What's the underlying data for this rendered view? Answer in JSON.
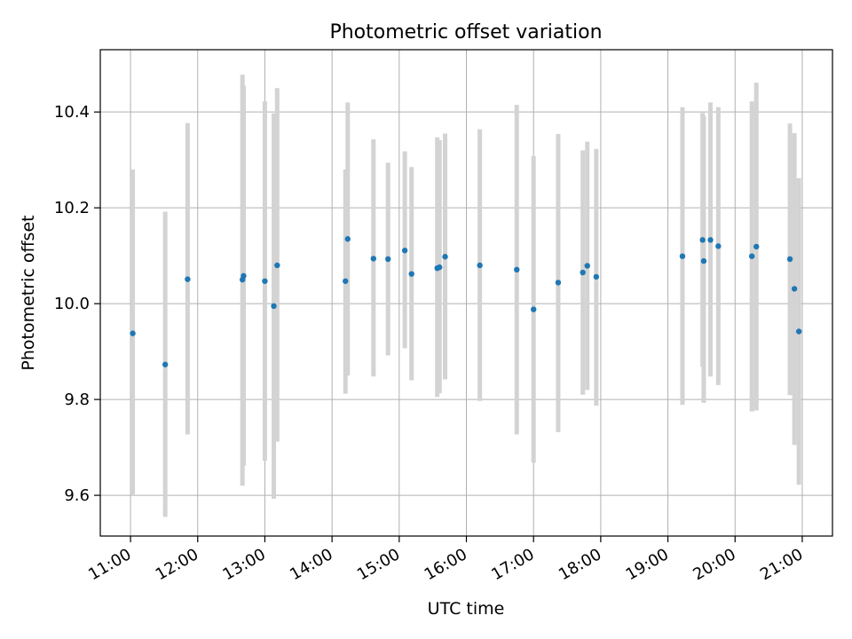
{
  "colors": {
    "point": "#1f77b4",
    "errorbar": "#d3d3d3",
    "grid": "#b0b0b0",
    "axis": "#000000"
  },
  "chart_data": {
    "type": "scatter",
    "title": "Photometric offset variation",
    "xlabel": "UTC time",
    "ylabel": "Photometric offset",
    "grid": true,
    "xlim": [
      "10:33",
      "21:27"
    ],
    "ylim": [
      9.515,
      10.53
    ],
    "x_ticks": [
      "11:00",
      "12:00",
      "13:00",
      "14:00",
      "15:00",
      "16:00",
      "17:00",
      "18:00",
      "19:00",
      "20:00",
      "21:00"
    ],
    "y_ticks": [
      "9.6",
      "9.8",
      "10.0",
      "10.2",
      "10.4"
    ],
    "points": [
      {
        "x": "11:02",
        "y": 9.938,
        "ylo": 9.6,
        "yhi": 10.28
      },
      {
        "x": "11:31",
        "y": 9.873,
        "ylo": 9.555,
        "yhi": 10.192
      },
      {
        "x": "11:51",
        "y": 10.051,
        "ylo": 9.727,
        "yhi": 10.377
      },
      {
        "x": "12:40",
        "y": 10.05,
        "ylo": 9.62,
        "yhi": 10.478
      },
      {
        "x": "12:41",
        "y": 10.058,
        "ylo": 9.662,
        "yhi": 10.455
      },
      {
        "x": "13:00",
        "y": 10.047,
        "ylo": 9.672,
        "yhi": 10.422
      },
      {
        "x": "13:08",
        "y": 9.995,
        "ylo": 9.593,
        "yhi": 10.397
      },
      {
        "x": "13:11",
        "y": 10.08,
        "ylo": 9.712,
        "yhi": 10.45
      },
      {
        "x": "14:12",
        "y": 10.047,
        "ylo": 9.812,
        "yhi": 10.28
      },
      {
        "x": "14:14",
        "y": 10.135,
        "ylo": 9.85,
        "yhi": 10.42
      },
      {
        "x": "14:37",
        "y": 10.094,
        "ylo": 9.848,
        "yhi": 10.343
      },
      {
        "x": "14:50",
        "y": 10.093,
        "ylo": 9.892,
        "yhi": 10.294
      },
      {
        "x": "15:05",
        "y": 10.111,
        "ylo": 9.907,
        "yhi": 10.318
      },
      {
        "x": "15:11",
        "y": 10.062,
        "ylo": 9.84,
        "yhi": 10.285
      },
      {
        "x": "15:34",
        "y": 10.074,
        "ylo": 9.805,
        "yhi": 10.347
      },
      {
        "x": "15:36",
        "y": 10.076,
        "ylo": 9.813,
        "yhi": 10.341
      },
      {
        "x": "15:41",
        "y": 10.098,
        "ylo": 9.842,
        "yhi": 10.355
      },
      {
        "x": "16:12",
        "y": 10.08,
        "ylo": 9.797,
        "yhi": 10.364
      },
      {
        "x": "16:45",
        "y": 10.071,
        "ylo": 9.727,
        "yhi": 10.415
      },
      {
        "x": "17:00",
        "y": 9.988,
        "ylo": 9.668,
        "yhi": 10.308
      },
      {
        "x": "17:22",
        "y": 10.044,
        "ylo": 9.732,
        "yhi": 10.354
      },
      {
        "x": "17:44",
        "y": 10.065,
        "ylo": 9.81,
        "yhi": 10.32
      },
      {
        "x": "17:48",
        "y": 10.079,
        "ylo": 9.82,
        "yhi": 10.338
      },
      {
        "x": "17:56",
        "y": 10.056,
        "ylo": 9.787,
        "yhi": 10.323
      },
      {
        "x": "19:13",
        "y": 10.099,
        "ylo": 9.789,
        "yhi": 10.41
      },
      {
        "x": "19:31",
        "y": 10.133,
        "ylo": 9.868,
        "yhi": 10.398
      },
      {
        "x": "19:32",
        "y": 10.089,
        "ylo": 9.793,
        "yhi": 10.392
      },
      {
        "x": "19:38",
        "y": 10.133,
        "ylo": 9.848,
        "yhi": 10.42
      },
      {
        "x": "19:45",
        "y": 10.12,
        "ylo": 9.83,
        "yhi": 10.41
      },
      {
        "x": "20:15",
        "y": 10.099,
        "ylo": 9.775,
        "yhi": 10.422
      },
      {
        "x": "20:19",
        "y": 10.119,
        "ylo": 9.777,
        "yhi": 10.461
      },
      {
        "x": "20:49",
        "y": 10.093,
        "ylo": 9.809,
        "yhi": 10.376
      },
      {
        "x": "20:53",
        "y": 10.031,
        "ylo": 9.705,
        "yhi": 10.356
      },
      {
        "x": "20:57",
        "y": 9.942,
        "ylo": 9.622,
        "yhi": 10.262
      }
    ]
  }
}
